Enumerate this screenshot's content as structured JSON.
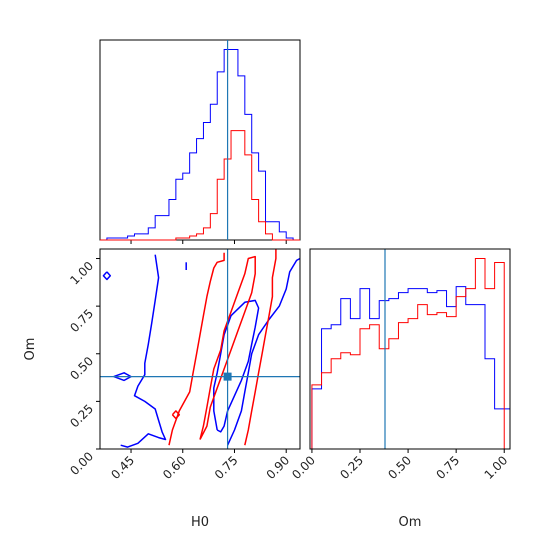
{
  "chart_data": {
    "type": "corner",
    "parameters": [
      "H0",
      "Om"
    ],
    "truth": {
      "H0": 0.73,
      "Om": 0.38
    },
    "colors": {
      "series_a": "#0000ff",
      "series_b": "#ff0000",
      "truth": "#1f77b4"
    },
    "panels": {
      "h0_marginal": {
        "type": "histogram",
        "xlim": [
          0.36,
          0.94
        ],
        "bin_edges": [
          0.36,
          0.38,
          0.4,
          0.42,
          0.44,
          0.46,
          0.48,
          0.5,
          0.52,
          0.54,
          0.56,
          0.58,
          0.6,
          0.62,
          0.64,
          0.66,
          0.68,
          0.7,
          0.72,
          0.74,
          0.76,
          0.78,
          0.8,
          0.82,
          0.84,
          0.86,
          0.88,
          0.9,
          0.92,
          0.94
        ],
        "series": [
          {
            "name": "",
            "color": "#0000ff",
            "values": [
              0,
              1,
              1,
              1,
              2,
              3,
              3,
              6,
              12,
              12,
              20,
              30,
              33,
              43,
              50,
              58,
              67,
              83,
              94,
              94,
              81,
              62,
              43,
              34,
              9,
              9,
              4,
              1,
              0
            ]
          },
          {
            "name": "",
            "color": "#ff0000",
            "values": [
              0,
              0,
              0,
              0,
              0,
              0,
              0,
              0,
              0,
              0,
              0,
              1,
              1,
              2,
              3,
              6,
              13,
              30,
              40,
              54,
              54,
              42,
              20,
              9,
              3,
              0,
              0,
              0,
              0
            ]
          }
        ]
      },
      "joint": {
        "type": "contour",
        "xlim": [
          0.36,
          0.94
        ],
        "ylim": [
          0.0,
          1.05
        ],
        "xticks": [
          0.45,
          0.6,
          0.75,
          0.9
        ],
        "xtick_labels": [
          "0.45",
          "0.60",
          "0.75",
          "0.90"
        ],
        "yticks": [
          0.0,
          0.25,
          0.5,
          0.75,
          1.0
        ],
        "ytick_labels": [
          "0.00",
          "0.25",
          "0.50",
          "0.75",
          "1.00"
        ],
        "xlabel": "H0",
        "ylabel": "Om",
        "contours": [
          {
            "color": "#0000ff",
            "points": [
              [
                0.52,
                1.02
              ],
              [
                0.53,
                0.9
              ],
              [
                0.52,
                0.78
              ],
              [
                0.51,
                0.66
              ],
              [
                0.5,
                0.55
              ],
              [
                0.49,
                0.45
              ],
              [
                0.49,
                0.39
              ],
              [
                0.47,
                0.33
              ],
              [
                0.46,
                0.28
              ],
              [
                0.49,
                0.25
              ],
              [
                0.52,
                0.21
              ],
              [
                0.53,
                0.15
              ],
              [
                0.54,
                0.09
              ],
              [
                0.55,
                0.05
              ],
              [
                0.53,
                0.06
              ],
              [
                0.5,
                0.08
              ],
              [
                0.47,
                0.03
              ],
              [
                0.44,
                0.01
              ],
              [
                0.42,
                0.02
              ]
            ]
          },
          {
            "color": "#0000ff",
            "points": [
              [
                0.73,
                0.02
              ],
              [
                0.75,
                0.1
              ],
              [
                0.77,
                0.2
              ],
              [
                0.78,
                0.3
              ],
              [
                0.79,
                0.4
              ],
              [
                0.8,
                0.5
              ],
              [
                0.82,
                0.6
              ],
              [
                0.85,
                0.68
              ],
              [
                0.88,
                0.75
              ],
              [
                0.9,
                0.84
              ],
              [
                0.91,
                0.93
              ],
              [
                0.93,
                0.99
              ],
              [
                0.94,
                1.0
              ]
            ]
          },
          {
            "color": "#0000ff",
            "points": [
              [
                0.7,
                0.1
              ],
              [
                0.69,
                0.2
              ],
              [
                0.69,
                0.32
              ],
              [
                0.7,
                0.4
              ],
              [
                0.71,
                0.5
              ],
              [
                0.72,
                0.6
              ],
              [
                0.74,
                0.7
              ],
              [
                0.78,
                0.77
              ],
              [
                0.81,
                0.78
              ],
              [
                0.82,
                0.74
              ],
              [
                0.81,
                0.64
              ],
              [
                0.8,
                0.55
              ],
              [
                0.79,
                0.46
              ],
              [
                0.77,
                0.36
              ],
              [
                0.75,
                0.28
              ],
              [
                0.73,
                0.2
              ],
              [
                0.72,
                0.12
              ],
              [
                0.71,
                0.09
              ],
              [
                0.7,
                0.1
              ]
            ]
          },
          {
            "color": "#0000ff",
            "points": [
              [
                0.38,
                0.93
              ],
              [
                0.39,
                0.91
              ],
              [
                0.38,
                0.89
              ],
              [
                0.37,
                0.91
              ],
              [
                0.38,
                0.93
              ]
            ]
          },
          {
            "color": "#0000ff",
            "points": [
              [
                0.4,
                0.38
              ],
              [
                0.43,
                0.4
              ],
              [
                0.45,
                0.38
              ],
              [
                0.43,
                0.36
              ],
              [
                0.4,
                0.38
              ]
            ]
          },
          {
            "color": "#0000ff",
            "points": [
              [
                0.61,
                0.94
              ],
              [
                0.61,
                0.98
              ]
            ]
          },
          {
            "color": "#ff0000",
            "points": [
              [
                0.56,
                0.02
              ],
              [
                0.57,
                0.1
              ],
              [
                0.59,
                0.2
              ],
              [
                0.62,
                0.3
              ],
              [
                0.63,
                0.4
              ],
              [
                0.64,
                0.5
              ],
              [
                0.65,
                0.6
              ],
              [
                0.66,
                0.7
              ],
              [
                0.67,
                0.8
              ],
              [
                0.68,
                0.88
              ],
              [
                0.69,
                0.95
              ],
              [
                0.7,
                0.98
              ],
              [
                0.72,
                0.99
              ],
              [
                0.72,
                1.03
              ]
            ]
          },
          {
            "color": "#ff0000",
            "points": [
              [
                0.78,
                0.02
              ],
              [
                0.79,
                0.1
              ],
              [
                0.8,
                0.2
              ],
              [
                0.81,
                0.3
              ],
              [
                0.82,
                0.4
              ],
              [
                0.83,
                0.5
              ],
              [
                0.84,
                0.6
              ],
              [
                0.85,
                0.7
              ],
              [
                0.86,
                0.8
              ],
              [
                0.86,
                0.9
              ],
              [
                0.87,
                1.0
              ],
              [
                0.87,
                1.05
              ]
            ]
          },
          {
            "color": "#ff0000",
            "points": [
              [
                0.65,
                0.05
              ],
              [
                0.66,
                0.12
              ],
              [
                0.67,
                0.22
              ],
              [
                0.68,
                0.32
              ],
              [
                0.69,
                0.42
              ],
              [
                0.71,
                0.52
              ],
              [
                0.72,
                0.62
              ],
              [
                0.74,
                0.72
              ],
              [
                0.76,
                0.82
              ],
              [
                0.78,
                0.92
              ],
              [
                0.79,
                1.0
              ],
              [
                0.81,
                1.01
              ],
              [
                0.81,
                0.92
              ],
              [
                0.8,
                0.82
              ],
              [
                0.78,
                0.72
              ],
              [
                0.76,
                0.62
              ],
              [
                0.74,
                0.52
              ],
              [
                0.72,
                0.42
              ],
              [
                0.7,
                0.32
              ],
              [
                0.68,
                0.22
              ],
              [
                0.67,
                0.12
              ],
              [
                0.65,
                0.05
              ]
            ]
          },
          {
            "color": "#ff0000",
            "points": [
              [
                0.57,
                0.18
              ],
              [
                0.58,
                0.2
              ],
              [
                0.59,
                0.18
              ],
              [
                0.58,
                0.16
              ],
              [
                0.57,
                0.18
              ]
            ]
          }
        ],
        "truth_marker": {
          "x": 0.73,
          "y": 0.38
        }
      },
      "om_marginal": {
        "type": "histogram",
        "xlim": [
          -0.01,
          1.03
        ],
        "xticks": [
          0.0,
          0.25,
          0.5,
          0.75,
          1.0
        ],
        "xtick_labels": [
          "0.00",
          "0.25",
          "0.50",
          "0.75",
          "1.00"
        ],
        "xlabel": "Om",
        "bin_edges": [
          0.0,
          0.05,
          0.1,
          0.15,
          0.2,
          0.25,
          0.3,
          0.35,
          0.4,
          0.45,
          0.5,
          0.55,
          0.6,
          0.65,
          0.7,
          0.75,
          0.8,
          0.85,
          0.9,
          0.95,
          1.0,
          1.03
        ],
        "series": [
          {
            "name": "",
            "color": "#0000ff",
            "values": [
              30,
              60,
              62,
              75,
              65,
              80,
              65,
              74,
              75,
              78,
              80,
              80,
              78,
              79,
              71,
              81,
              72,
              72,
              45,
              20,
              20
            ]
          },
          {
            "name": "",
            "color": "#ff0000",
            "values": [
              32,
              38,
              45,
              48,
              47,
              60,
              62,
              50,
              55,
              63,
              65,
              72,
              67,
              68,
              66,
              76,
              80,
              95,
              80,
              93,
              0
            ]
          }
        ]
      }
    }
  }
}
